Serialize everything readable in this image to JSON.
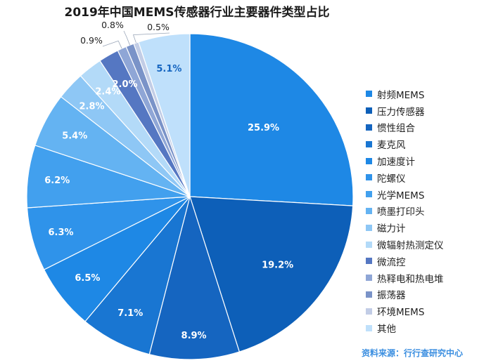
{
  "chart_data": {
    "type": "pie",
    "title": "2019年中国MEMS传感器行业主要器件类型占比",
    "unit": "%",
    "slices": [
      {
        "label": "射频MEMS",
        "value": 25.9,
        "display": "25.9%",
        "color": "#1e88e5",
        "label_color": "#ffffff"
      },
      {
        "label": "压力传感器",
        "value": 19.2,
        "display": "19.2%",
        "color": "#0d5fb8",
        "label_color": "#ffffff"
      },
      {
        "label": "惯性组合",
        "value": 8.9,
        "display": "8.9%",
        "color": "#1565c0",
        "label_color": "#ffffff"
      },
      {
        "label": "麦克风",
        "value": 7.1,
        "display": "7.1%",
        "color": "#1976d2",
        "label_color": "#ffffff"
      },
      {
        "label": "加速度计",
        "value": 6.5,
        "display": "6.5%",
        "color": "#1e88e5",
        "label_color": "#ffffff"
      },
      {
        "label": "陀螺仪",
        "value": 6.3,
        "display": "6.3%",
        "color": "#2f93ea",
        "label_color": "#ffffff"
      },
      {
        "label": "光学MEMS",
        "value": 6.2,
        "display": "6.2%",
        "color": "#42a0ee",
        "label_color": "#ffffff"
      },
      {
        "label": "喷墨打印头",
        "value": 5.4,
        "display": "5.4%",
        "color": "#64b3f2",
        "label_color": "#ffffff"
      },
      {
        "label": "磁力计",
        "value": 2.8,
        "display": "2.8%",
        "color": "#8ec7f5",
        "label_color": "#ffffff"
      },
      {
        "label": "微辐射热测定仪",
        "value": 2.4,
        "display": "2.4%",
        "color": "#b3daf8",
        "label_color": "#ffffff"
      },
      {
        "label": "微流控",
        "value": 2.0,
        "display": "2.0%",
        "color": "#5577c2",
        "label_color": "#ffffff"
      },
      {
        "label": "热释电和热电堆",
        "value": 0.9,
        "display": "0.9%",
        "color": "#8fa6d6",
        "label_color": "#222222"
      },
      {
        "label": "振荡器",
        "value": 0.8,
        "display": "0.8%",
        "color": "#7a93c8",
        "label_color": "#222222"
      },
      {
        "label": "环境MEMS",
        "value": 0.5,
        "display": "0.5%",
        "color": "#c2cde6",
        "label_color": "#222222"
      },
      {
        "label": "其他",
        "value": 5.1,
        "display": "5.1%",
        "color": "#bfe0fb",
        "label_color": "#1565c0"
      }
    ]
  },
  "source": "资料来源：行行查研究中心"
}
